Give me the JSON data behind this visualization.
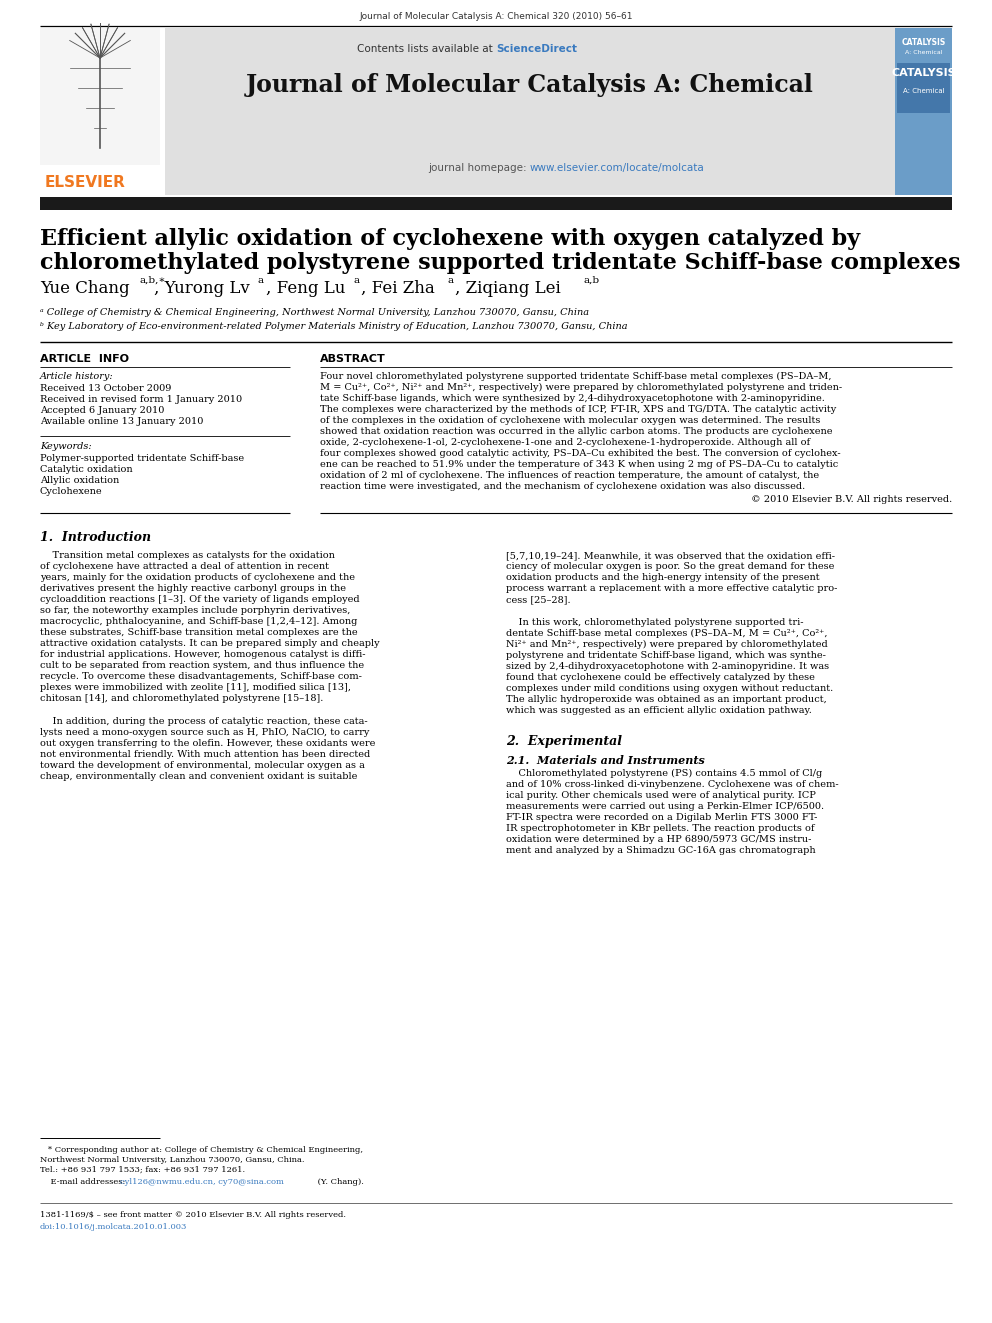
{
  "page_width": 9.92,
  "page_height": 13.23,
  "dpi": 100,
  "bg_color": "#ffffff",
  "header_journal_text": "Journal of Molecular Catalysis A: Chemical 320 (2010) 56–61",
  "sciencedirect_text": "Contents lists available at ",
  "sciencedirect_link": "ScienceDirect",
  "sciencedirect_color": "#3a7abf",
  "journal_title": "Journal of Molecular Catalysis A: Chemical",
  "journal_homepage_text": "journal homepage: ",
  "journal_homepage_url": "www.elsevier.com/locate/molcata",
  "paper_title_line1": "Efficient allylic oxidation of cyclohexene with oxygen catalyzed by",
  "paper_title_line2": "chloromethylated polystyrene supported tridentate Schiff-base complexes",
  "elsevier_orange": "#f07820",
  "link_color": "#3a7abf",
  "header_bg": "#e0e0e0",
  "catalog_bg": "#6b9dc8",
  "black_bar": "#1a1a1a",
  "footnote_issn": "1381-1169/$ – see front matter © 2010 Elsevier B.V. All rights reserved.",
  "footnote_doi": "doi:10.1016/j.molcata.2010.01.003"
}
